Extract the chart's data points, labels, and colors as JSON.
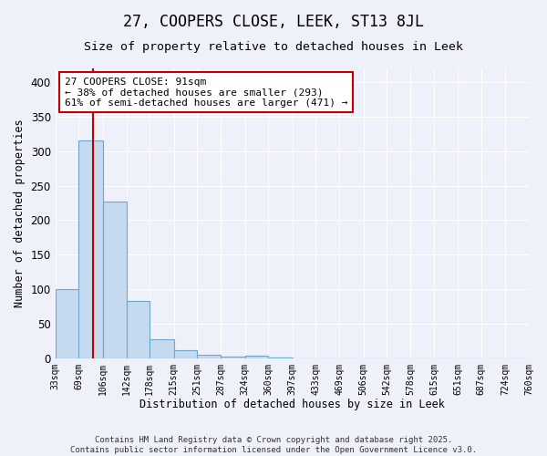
{
  "title": "27, COOPERS CLOSE, LEEK, ST13 8JL",
  "subtitle": "Size of property relative to detached houses in Leek",
  "xlabel": "Distribution of detached houses by size in Leek",
  "ylabel": "Number of detached properties",
  "bar_heights": [
    100,
    316,
    227,
    83,
    27,
    12,
    5,
    2,
    4,
    1,
    0,
    0,
    0,
    0,
    0,
    0,
    0,
    0,
    0,
    0
  ],
  "bin_edges": [
    33,
    69,
    106,
    142,
    178,
    215,
    251,
    287,
    324,
    360,
    397,
    433,
    469,
    506,
    542,
    578,
    615,
    651,
    687,
    724,
    760
  ],
  "bar_color": "#c5d9ef",
  "bar_edgecolor": "#6ea6cc",
  "vline_x": 91,
  "vline_color": "#c00000",
  "annotation_text": "27 COOPERS CLOSE: 91sqm\n← 38% of detached houses are smaller (293)\n61% of semi-detached houses are larger (471) →",
  "annotation_box_edgecolor": "#c00000",
  "annotation_box_facecolor": "#ffffff",
  "ylim": [
    0,
    420
  ],
  "yticks": [
    0,
    50,
    100,
    150,
    200,
    250,
    300,
    350,
    400
  ],
  "tick_labels": [
    "33sqm",
    "69sqm",
    "106sqm",
    "142sqm",
    "178sqm",
    "215sqm",
    "251sqm",
    "287sqm",
    "324sqm",
    "360sqm",
    "397sqm",
    "433sqm",
    "469sqm",
    "506sqm",
    "542sqm",
    "578sqm",
    "615sqm",
    "651sqm",
    "687sqm",
    "724sqm",
    "760sqm"
  ],
  "footer_line1": "Contains HM Land Registry data © Crown copyright and database right 2025.",
  "footer_line2": "Contains public sector information licensed under the Open Government Licence v3.0.",
  "bg_color": "#eef1fa",
  "grid_color": "#ffffff",
  "title_fontsize": 12,
  "subtitle_fontsize": 9.5,
  "axis_label_fontsize": 8.5,
  "tick_fontsize": 7,
  "annotation_fontsize": 8,
  "footer_fontsize": 6.5
}
